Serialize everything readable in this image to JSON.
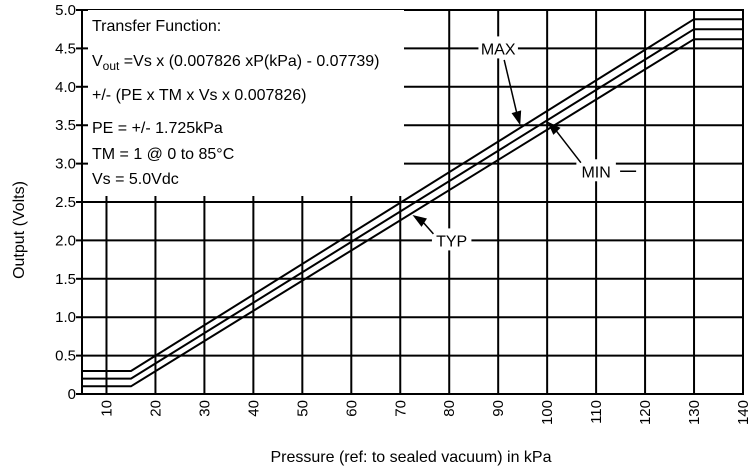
{
  "chart_data": {
    "type": "line",
    "xlabel": "Pressure (ref: to sealed vacuum) in kPa",
    "ylabel": "Output (Volts)",
    "xlim": [
      5,
      140
    ],
    "ylim": [
      0,
      5.0
    ],
    "x_ticks": [
      "10",
      "20",
      "30",
      "40",
      "50",
      "60",
      "70",
      "80",
      "90",
      "100",
      "110",
      "120",
      "130",
      "140"
    ],
    "y_ticks": [
      "0",
      "0.5",
      "1.0",
      "1.5",
      "2.0",
      "2.5",
      "3.0",
      "3.5",
      "4.0",
      "4.5",
      "5.0"
    ],
    "grid": true,
    "series": [
      {
        "name": "MAX",
        "x": [
          5,
          15,
          130,
          140
        ],
        "y": [
          0.3,
          0.3,
          4.88,
          4.88
        ]
      },
      {
        "name": "TYP",
        "x": [
          5,
          15,
          130,
          140
        ],
        "y": [
          0.2,
          0.2,
          4.75,
          4.75
        ]
      },
      {
        "name": "MIN",
        "x": [
          5,
          15,
          130,
          140
        ],
        "y": [
          0.1,
          0.1,
          4.62,
          4.62
        ]
      }
    ],
    "info_box": {
      "line1": "Transfer Function:",
      "line2_prefix": "V",
      "line2_sub": "out",
      "line2_rest": " =Vs x (0.007826 xP(kPa) - 0.07739)",
      "line3": "+/- (PE x TM x Vs x 0.007826)",
      "line4": "PE = +/- 1.725kPa",
      "line5": "TM = 1 @ 0 to 85°C",
      "line6": "Vs = 5.0Vdc"
    },
    "annotations": [
      {
        "label": "MAX",
        "series": "MAX",
        "text_x": 90,
        "text_y": 4.5,
        "arrow_to_x": 94.5,
        "arrow_to_y": 3.5
      },
      {
        "label": "MIN",
        "series": "MIN",
        "text_x": 110,
        "text_y": 2.9,
        "arrow_to_x": 100,
        "arrow_to_y": 3.55
      },
      {
        "label": "TYP",
        "series": "TYP",
        "text_x": 80.5,
        "text_y": 2.0,
        "arrow_to_x": 72.5,
        "arrow_to_y": 2.33
      }
    ]
  }
}
